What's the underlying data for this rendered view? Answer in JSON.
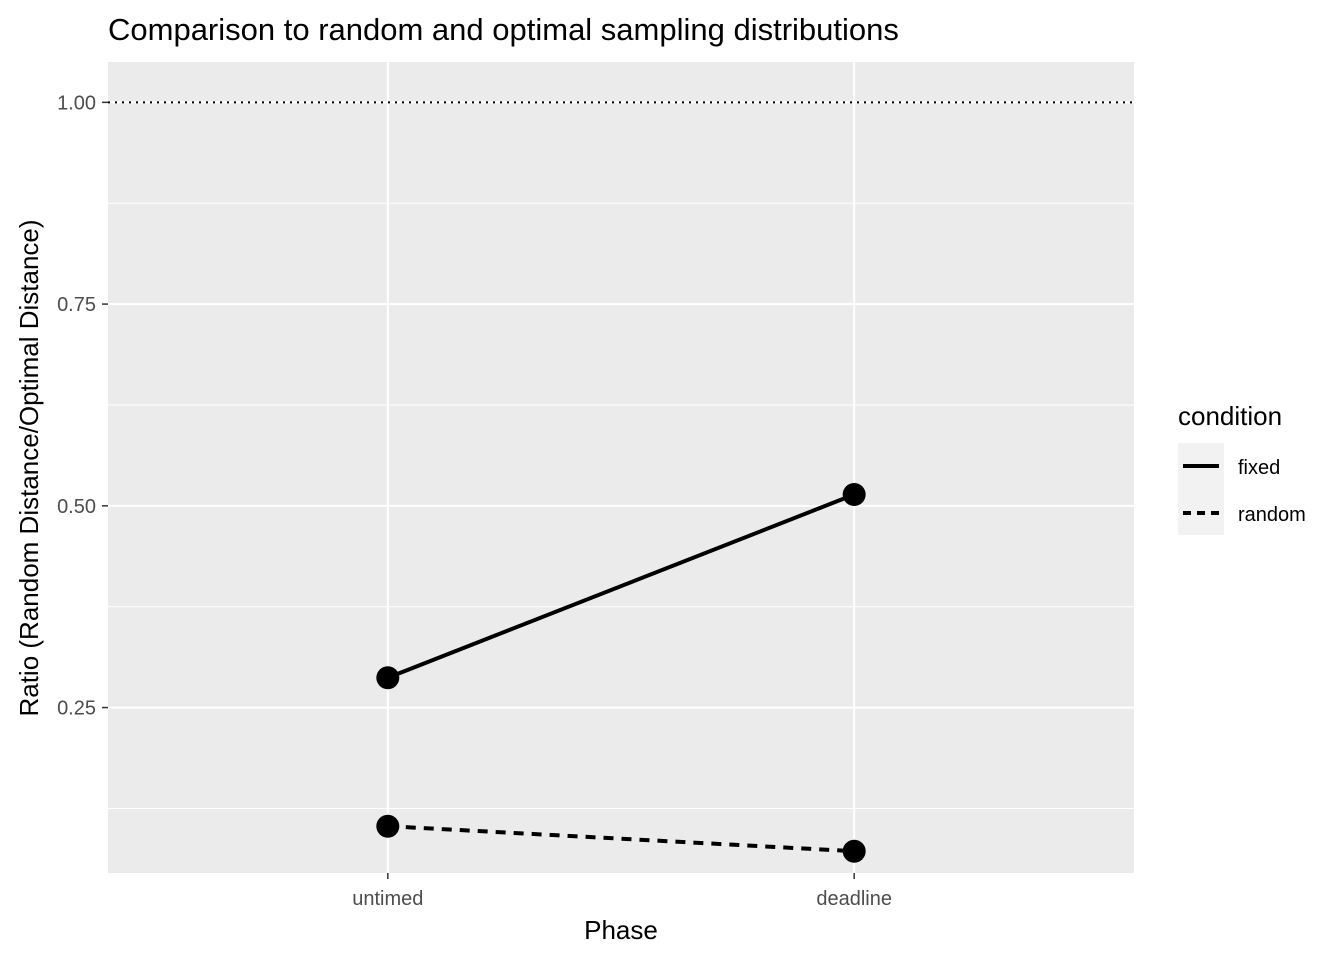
{
  "chart_data": {
    "type": "line",
    "title": "Comparison to random and optimal sampling distributions",
    "xlabel": "Phase",
    "ylabel": "Ratio (Random Distance/Optimal Distance)",
    "categories": [
      "untimed",
      "deadline"
    ],
    "y_ticks": [
      "0.25",
      "0.50",
      "0.75",
      "1.00"
    ],
    "y_tick_values": [
      0.25,
      0.5,
      0.75,
      1.0
    ],
    "ylim": [
      0.045,
      1.05
    ],
    "reference_line": {
      "y": 1.0,
      "style": "dotted"
    },
    "legend": {
      "title": "condition",
      "placement": "right"
    },
    "series": [
      {
        "name": "fixed",
        "linetype": "solid",
        "values": [
          0.287,
          0.514
        ]
      },
      {
        "name": "random",
        "linetype": "dashed",
        "values": [
          0.103,
          0.072
        ]
      }
    ],
    "grid": true,
    "colors": {
      "panel": "#ebebeb",
      "grid": "#ffffff",
      "ink": "#000000",
      "tick_text": "#4d4d4d"
    }
  }
}
